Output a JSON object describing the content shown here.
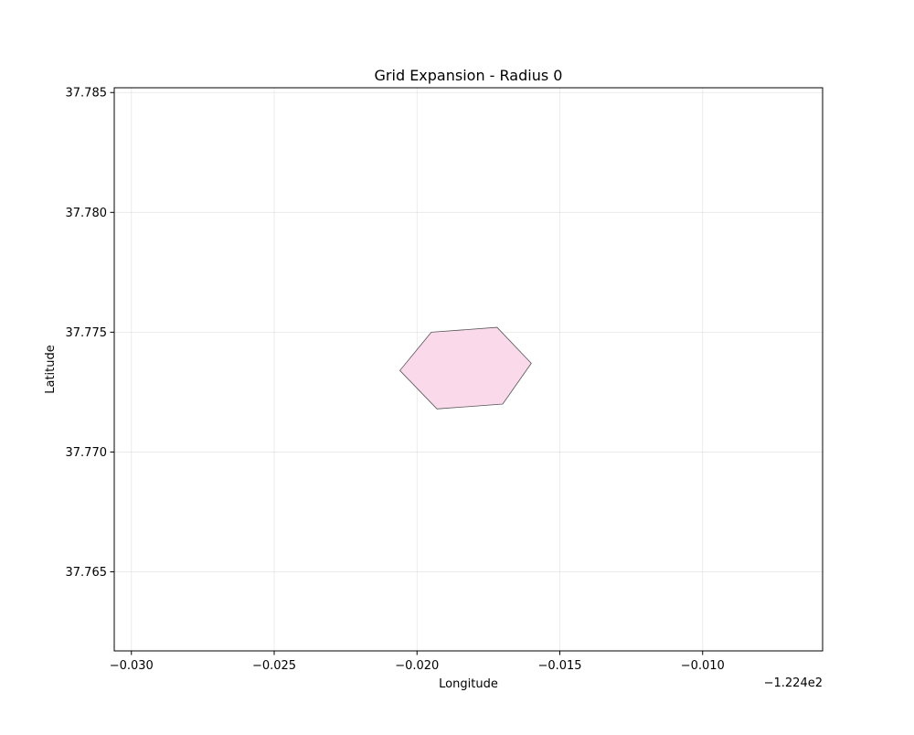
{
  "chart_data": {
    "type": "polygon",
    "title": "Grid Expansion - Radius 0",
    "xlabel": "Longitude",
    "ylabel": "Latitude",
    "x_offset_label": "−1.224e2",
    "x_offset": -122.4,
    "xlim": [
      -0.0306,
      -0.0058
    ],
    "ylim": [
      37.7617,
      37.7852
    ],
    "xticks": [
      -0.03,
      -0.025,
      -0.02,
      -0.015,
      -0.01
    ],
    "xtick_labels": [
      "−0.030",
      "−0.025",
      "−0.020",
      "−0.015",
      "−0.010"
    ],
    "yticks": [
      37.765,
      37.77,
      37.775,
      37.78,
      37.785
    ],
    "ytick_labels": [
      "37.765",
      "37.770",
      "37.775",
      "37.780",
      "37.785"
    ],
    "grid": true,
    "polygons": [
      {
        "fill": "#fad9ea",
        "edge": "#555555",
        "vertices": [
          [
            -0.0195,
            37.775
          ],
          [
            -0.0172,
            37.7752
          ],
          [
            -0.016,
            37.7737
          ],
          [
            -0.017,
            37.772
          ],
          [
            -0.0193,
            37.7718
          ],
          [
            -0.0206,
            37.7734
          ]
        ]
      }
    ]
  }
}
